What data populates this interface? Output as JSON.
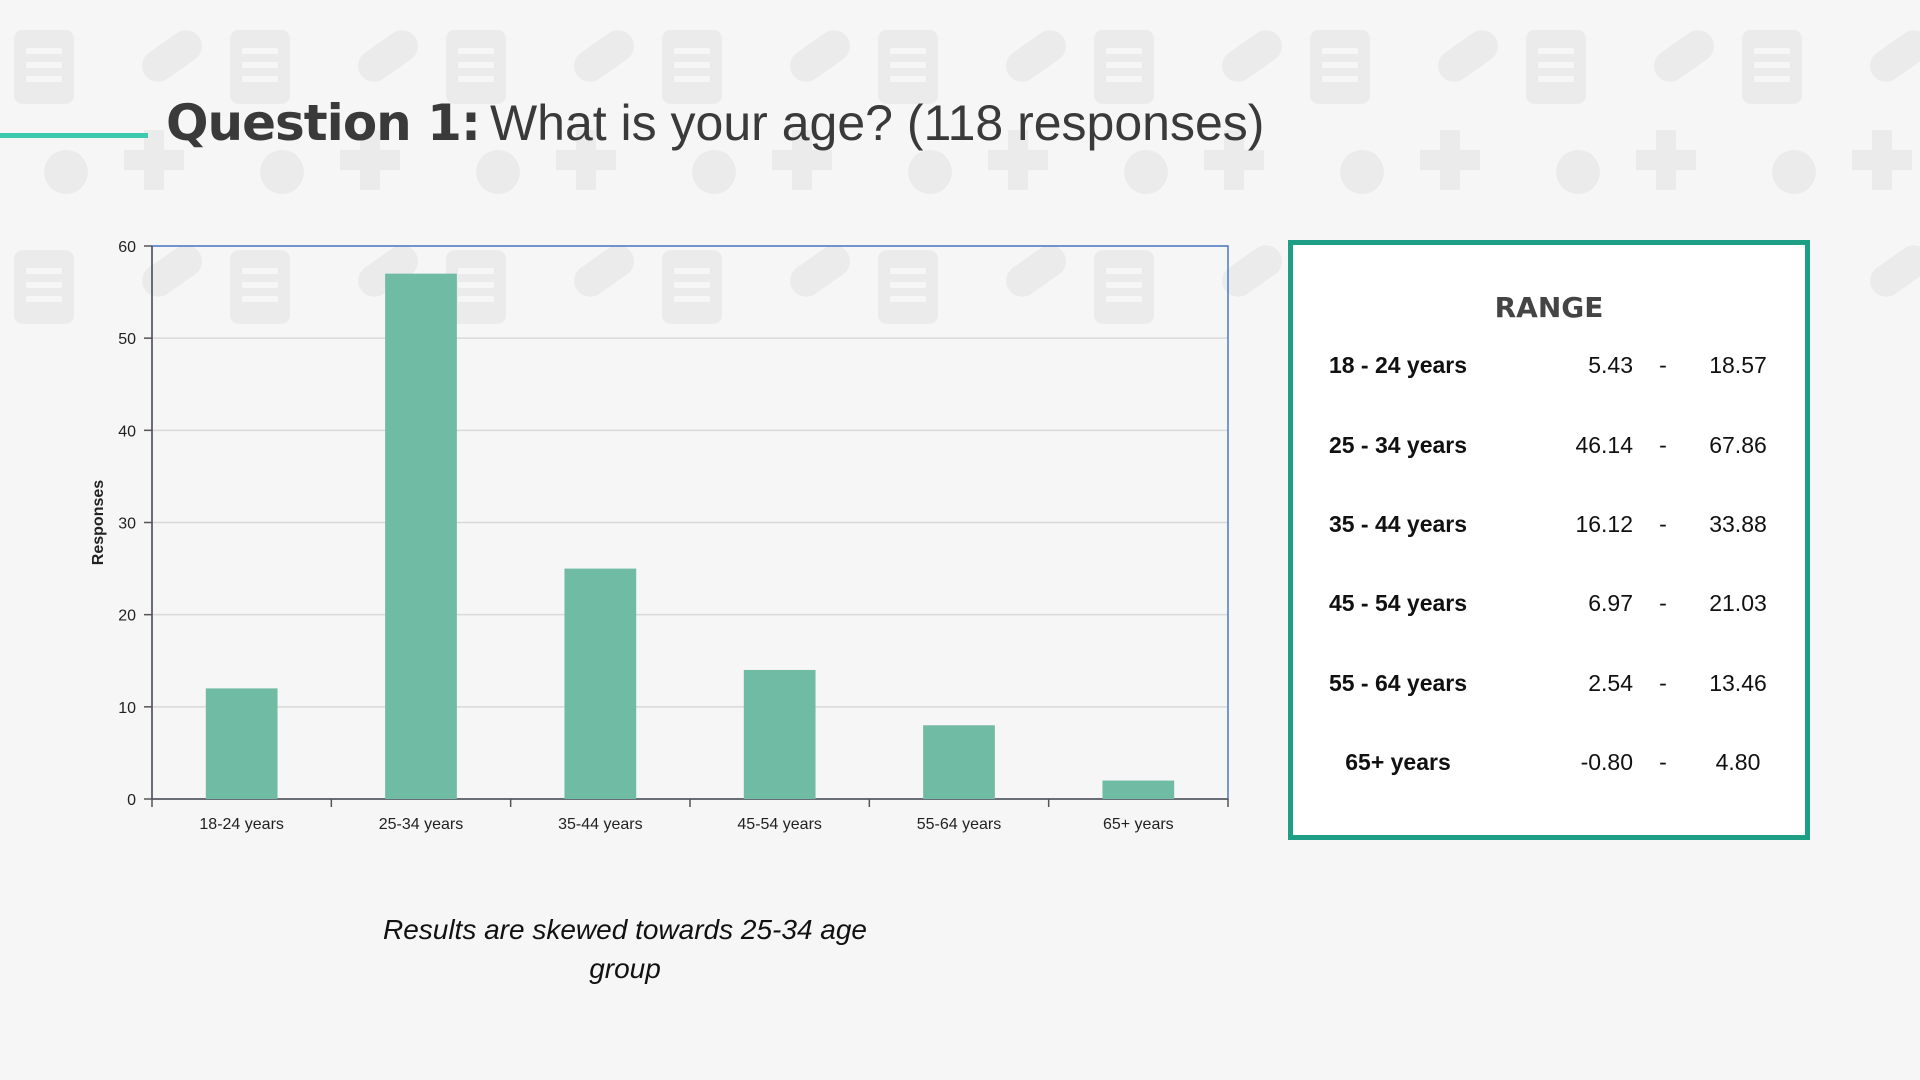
{
  "title": {
    "bold": "Question 1:",
    "rest": "What is your age? (118 responses)"
  },
  "colors": {
    "accent_line": "#3cc9ae",
    "bar": "#70bba3",
    "box_border": "#1e9f85",
    "plot_border": "#4a78c2"
  },
  "chart_data": {
    "type": "bar",
    "categories": [
      "18-24 years",
      "25-34 years",
      "35-44 years",
      "45-54 years",
      "55-64 years",
      "65+ years"
    ],
    "values": [
      12,
      57,
      25,
      14,
      8,
      2
    ],
    "ylabel": "Responses",
    "xlabel": "",
    "ylim": [
      0,
      60
    ],
    "yticks": [
      0,
      10,
      20,
      30,
      40,
      50,
      60
    ],
    "grid": true,
    "legend": "none"
  },
  "caption": "Results are skewed towards 25-34 age group",
  "range_box": {
    "title": "RANGE",
    "rows": [
      {
        "label": "18 - 24 years",
        "low": "5.43",
        "dash": "-",
        "high": "18.57"
      },
      {
        "label": "25 - 34 years",
        "low": "46.14",
        "dash": "-",
        "high": "67.86"
      },
      {
        "label": "35 - 44 years",
        "low": "16.12",
        "dash": "-",
        "high": "33.88"
      },
      {
        "label": "45 - 54 years",
        "low": "6.97",
        "dash": "-",
        "high": "21.03"
      },
      {
        "label": "55 - 64 years",
        "low": "2.54",
        "dash": "-",
        "high": "13.46"
      },
      {
        "label": "65+ years",
        "low": "-0.80",
        "dash": "-",
        "high": "4.80"
      }
    ]
  }
}
